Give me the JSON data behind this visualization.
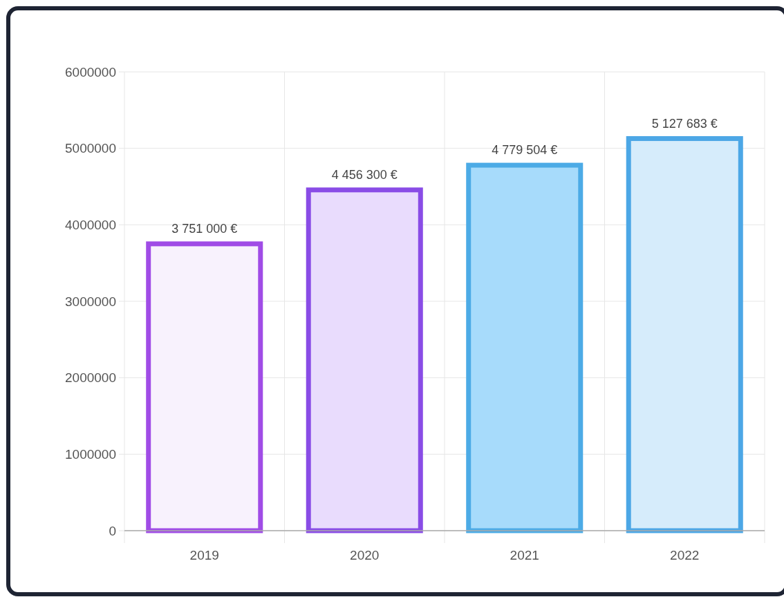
{
  "chart_data": {
    "type": "bar",
    "categories": [
      "2019",
      "2020",
      "2021",
      "2022"
    ],
    "values": [
      3751000,
      4456300,
      4779504,
      5127683
    ],
    "value_labels": [
      "3 751 000 €",
      "4 456 300 €",
      "4 779 504 €",
      "5 127 683 €"
    ],
    "colors": [
      "#f8f2fd",
      "#e9dcfd",
      "#a7dbfb",
      "#d6ecfb"
    ],
    "ylim": [
      0,
      6000000
    ],
    "yticks": [
      0,
      1000000,
      2000000,
      3000000,
      4000000,
      5000000,
      6000000
    ],
    "grid": true
  }
}
